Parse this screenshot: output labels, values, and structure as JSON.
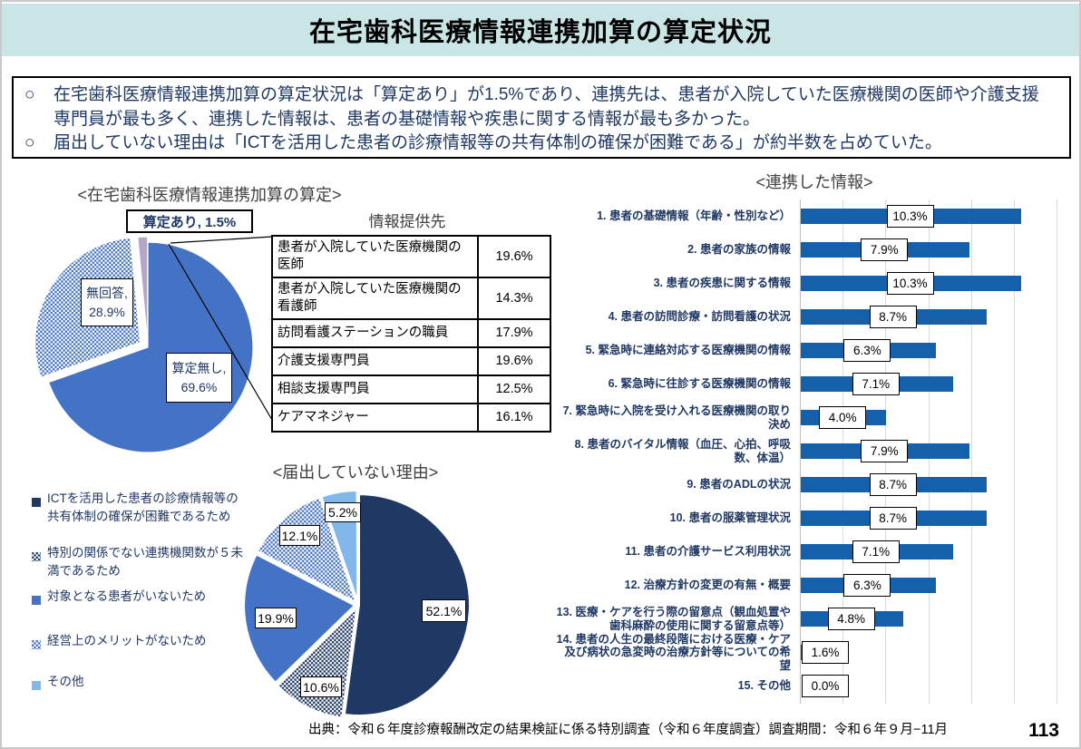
{
  "page": {
    "title": "在宅歯科医療情報連携加算の算定状況",
    "page_number": "113",
    "source": "出典：令和６年度診療報酬改定の結果検証に係る特別調査（令和６年度調査）調査期間：令和６年９月−11月"
  },
  "summary": {
    "bullet_marker": "○",
    "bullets": [
      "在宅歯科医療情報連携加算の算定状況は「算定あり」が1.5%であり、連携先は、患者が入院していた医療機関の医師や介護支援専門員が最も多く、連携した情報は、患者の基礎情報や疾患に関する情報が最も多かった。",
      "届出していない理由は「ICTを活用した患者の診療情報等の共有体制の確保が困難である」が約半数を占めていた。"
    ]
  },
  "colors": {
    "header_teal": "#c9e5e6",
    "navy": "#203864",
    "blue": "#4472c4",
    "bar_blue": "#1560aa",
    "lavender": "#b3a6c9",
    "light_blue": "#82b7ea",
    "gridline": "#d9d9d9",
    "text_navy": "#1f3864"
  },
  "chart_data": [
    {
      "id": "calc-status-pie",
      "type": "pie",
      "title": "<在宅歯科医療情報連携加算の算定>",
      "callout_label": "算定あり, 1.5%",
      "slices": [
        {
          "label": "算定あり",
          "value": 1.5,
          "fill": "lavender"
        },
        {
          "label": "算定無し",
          "value": 69.6,
          "fill": "blue"
        },
        {
          "label": "無回答",
          "value": 28.9,
          "fill": "blue-dots"
        }
      ]
    },
    {
      "id": "provider-table",
      "type": "table",
      "title": "情報提供先",
      "rows": [
        {
          "label": "患者が入院していた医療機関の医師",
          "value": "19.6%"
        },
        {
          "label": "患者が入院していた医療機関の看護師",
          "value": "14.3%"
        },
        {
          "label": "訪問看護ステーションの職員",
          "value": "17.9%"
        },
        {
          "label": "介護支援専門員",
          "value": "19.6%"
        },
        {
          "label": "相談支援専門員",
          "value": "12.5%"
        },
        {
          "label": "ケアマネジャー",
          "value": "16.1%"
        }
      ]
    },
    {
      "id": "linked-info-bar",
      "type": "bar",
      "title": "<連携した情報>",
      "orientation": "horizontal",
      "xlim": [
        0,
        12.8
      ],
      "gridline_step": 2,
      "categories": [
        "1. 患者の基礎情報（年齢・性別など）",
        "2. 患者の家族の情報",
        "3. 患者の疾患に関する情報",
        "4. 患者の訪問診療・訪問看護の状況",
        "5. 緊急時に連絡対応する医療機関の情報",
        "6. 緊急時に往診する医療機関の情報",
        "7. 緊急時に入院を受け入れる医療機関の取り決め",
        "8. 患者のバイタル情報（血圧、心拍、呼吸数、体温）",
        "9. 患者のADLの状況",
        "10. 患者の服薬管理状況",
        "11. 患者の介護サービス利用状況",
        "12. 治療方針の変更の有無・概要",
        "13. 医療・ケアを行う際の留意点（観血処置や歯科麻酔の使用に関する留意点等）",
        "14. 患者の人生の最終段階における医療・ケア及び病状の急変時の治療方針等についての希望",
        "15. その他"
      ],
      "values": [
        10.3,
        7.9,
        10.3,
        8.7,
        6.3,
        7.1,
        4.0,
        7.9,
        8.7,
        8.7,
        7.1,
        6.3,
        4.8,
        1.6,
        0.0
      ]
    },
    {
      "id": "no-report-reason-pie",
      "type": "pie",
      "title": "<届出していない理由>",
      "slices": [
        {
          "label": "ICTを活用した患者の診療情報等の共有体制の確保が困難であるため",
          "value": 52.1,
          "fill": "navy"
        },
        {
          "label": "特別の関係でない連携機関数が５未満であるため",
          "value": 10.6,
          "fill": "navy-dots"
        },
        {
          "label": "対象となる患者がいないため",
          "value": 19.9,
          "fill": "blue"
        },
        {
          "label": "経営上のメリットがないため",
          "value": 12.1,
          "fill": "blue-dots"
        },
        {
          "label": "その他",
          "value": 5.2,
          "fill": "light_blue"
        }
      ]
    }
  ]
}
